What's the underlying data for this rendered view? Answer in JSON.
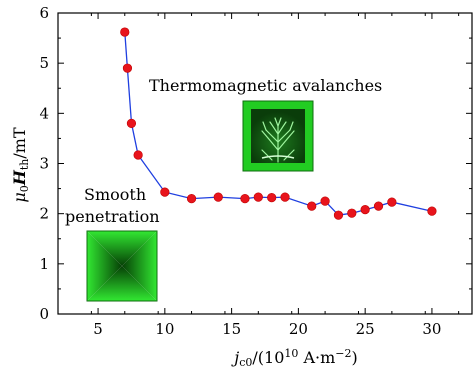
{
  "chart_data": {
    "type": "line",
    "title": "",
    "xlabel_parts": [
      "j",
      "c0",
      "/(10",
      "10",
      " A·m",
      "−2",
      ")"
    ],
    "ylabel_parts": [
      "μ",
      "0",
      "H",
      "th",
      "/mT"
    ],
    "xlim": [
      2,
      33
    ],
    "ylim": [
      0,
      6
    ],
    "xticks": [
      5,
      10,
      15,
      20,
      25,
      30
    ],
    "yticks": [
      0,
      1,
      2,
      3,
      4,
      5,
      6
    ],
    "x_minor_step": 2.5,
    "y_minor_step": 0.5,
    "grid": false,
    "series": [
      {
        "line_color": "#1f3fe0",
        "marker_color": "#e8141c",
        "points": [
          [
            7.0,
            5.62
          ],
          [
            7.2,
            4.9
          ],
          [
            7.5,
            3.8
          ],
          [
            8.0,
            3.17
          ],
          [
            10.0,
            2.43
          ],
          [
            12.0,
            2.3
          ],
          [
            14.0,
            2.33
          ],
          [
            16.0,
            2.3
          ],
          [
            17.0,
            2.33
          ],
          [
            18.0,
            2.32
          ],
          [
            19.0,
            2.33
          ],
          [
            21.0,
            2.15
          ],
          [
            22.0,
            2.25
          ],
          [
            23.0,
            1.97
          ],
          [
            24.0,
            2.01
          ],
          [
            25.0,
            2.08
          ],
          [
            26.0,
            2.15
          ],
          [
            27.0,
            2.23
          ],
          [
            30.0,
            2.05
          ]
        ]
      }
    ],
    "annotations": [
      {
        "text": "Thermomagnetic avalanches"
      },
      {
        "text": "Smooth"
      },
      {
        "text": "penetration"
      }
    ],
    "inset_images": [
      {
        "name": "thermomagnetic-avalanche-inset",
        "depicts": "dendritic flux pattern",
        "color": "#22cc22"
      },
      {
        "name": "smooth-penetration-inset",
        "depicts": "smooth flux front",
        "color": "#22cc22"
      }
    ]
  }
}
